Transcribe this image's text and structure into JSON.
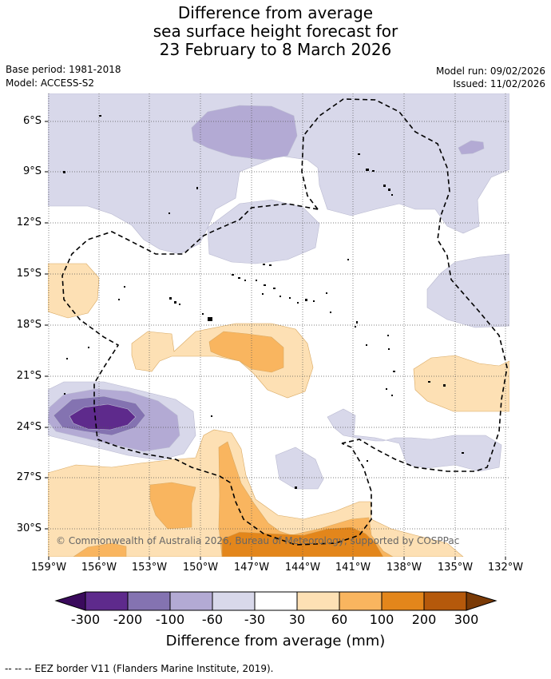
{
  "title": {
    "line1": "Difference from average",
    "line2": "sea surface height forecast for",
    "line3": "23 February to 8 March 2026"
  },
  "info": {
    "base_period": "Base period: 1981-2018",
    "model": "Model: ACCESS-S2",
    "model_run": "Model run: 09/02/2026",
    "issued": "Issued: 11/02/2026"
  },
  "map": {
    "lat_labels": [
      "6°S",
      "9°S",
      "12°S",
      "15°S",
      "18°S",
      "21°S",
      "24°S",
      "27°S",
      "30°S"
    ],
    "lon_labels": [
      "159°W",
      "156°W",
      "153°W",
      "150°W",
      "147°W",
      "144°W",
      "141°W",
      "138°W",
      "135°W",
      "132°W"
    ],
    "copyright": "© Commonwealth of Australia 2026, Bureau of Meteorology, supported by COSPPac",
    "colors": {
      "m200": "#5e2a8c",
      "m100": "#8473b1",
      "m60": "#b3aad4",
      "m30": "#d8d8ea",
      "neutral": "#ffffff",
      "p30": "#fde0b4",
      "p60": "#f9b55f",
      "p100": "#e3861b",
      "p200": "#b5590b",
      "p300": "#7a3a06",
      "m300": "#3a0a5c"
    }
  },
  "colorbar": {
    "labels": [
      "-300",
      "-200",
      "-100",
      "-60",
      "-30",
      "30",
      "60",
      "100",
      "200",
      "300"
    ],
    "title": "Difference from average (mm)"
  },
  "legend": {
    "eez": "--  --  -- EEZ border V11 (Flanders Marine Institute, 2019)."
  }
}
